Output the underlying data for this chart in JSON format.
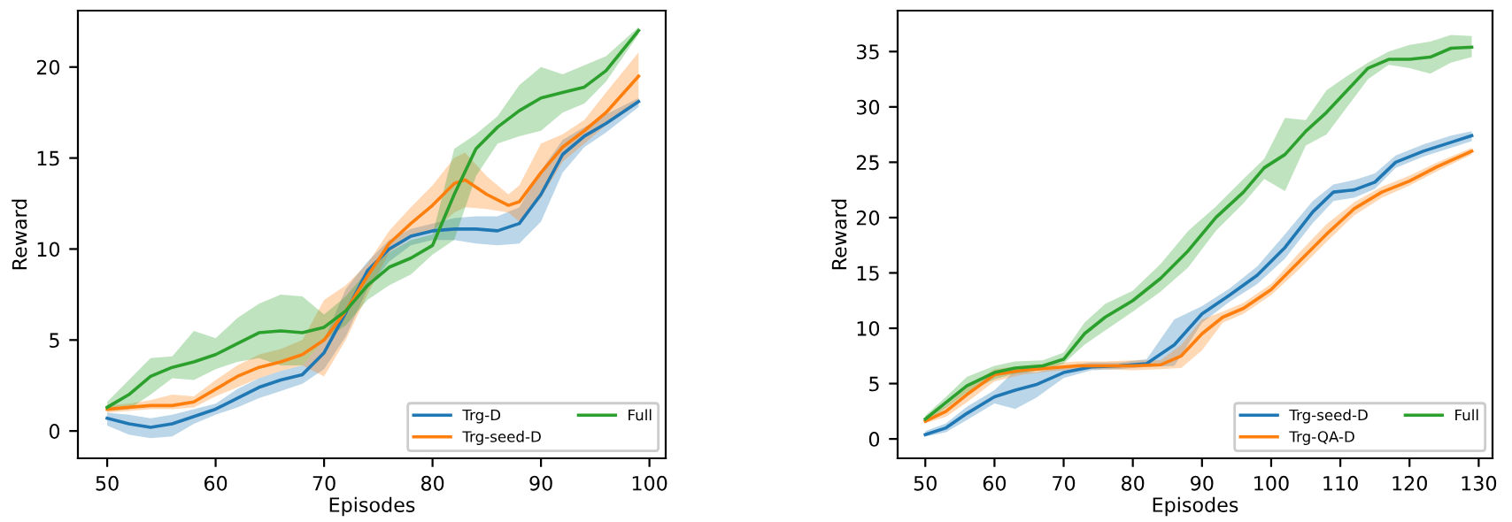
{
  "chart_data": [
    {
      "type": "line",
      "xlabel": "Episodes",
      "ylabel": "Reward",
      "xlim": [
        47.3,
        101.5
      ],
      "ylim": [
        -1.5,
        23.1
      ],
      "xticks": [
        50,
        60,
        70,
        80,
        90,
        100
      ],
      "yticks": [
        0,
        5,
        10,
        15,
        20
      ],
      "grid": false,
      "legend": "bottom right",
      "marker": "none",
      "line_style": "solid",
      "series": [
        {
          "name": "Trg-D",
          "color": "#1f77b4",
          "x": [
            50,
            52,
            54,
            56,
            58,
            60,
            62,
            64,
            66,
            68,
            70,
            72,
            74,
            76,
            78,
            80,
            82,
            84,
            86,
            88,
            90,
            92,
            94,
            96,
            99
          ],
          "values": [
            0.7,
            0.4,
            0.2,
            0.4,
            0.8,
            1.2,
            1.8,
            2.4,
            2.8,
            3.1,
            4.3,
            6.5,
            8.8,
            10.0,
            10.7,
            11.0,
            11.1,
            11.1,
            11.0,
            11.4,
            13.0,
            15.2,
            16.2,
            16.9,
            18.1
          ],
          "lower": [
            0.3,
            -0.2,
            -0.4,
            -0.3,
            0.4,
            0.9,
            1.3,
            1.8,
            2.2,
            2.6,
            3.4,
            5.2,
            7.8,
            9.3,
            10.2,
            10.5,
            10.5,
            10.3,
            10.2,
            10.3,
            11.5,
            14.2,
            15.6,
            16.4,
            17.8
          ],
          "upper": [
            1.0,
            0.9,
            0.7,
            0.9,
            1.2,
            1.5,
            2.3,
            2.9,
            3.3,
            3.6,
            5.0,
            7.8,
            9.3,
            10.5,
            11.1,
            11.4,
            11.7,
            11.8,
            11.8,
            12.3,
            14.3,
            16.0,
            16.7,
            17.4,
            18.3
          ]
        },
        {
          "name": "Trg-seed-D",
          "color": "#ff7f0e",
          "x": [
            50,
            52,
            54,
            56,
            58,
            60,
            62,
            64,
            66,
            68,
            70,
            72,
            74,
            76,
            78,
            80,
            82,
            83,
            85,
            87,
            88,
            90,
            92,
            94,
            96,
            99
          ],
          "values": [
            1.2,
            1.3,
            1.4,
            1.4,
            1.6,
            2.3,
            3.0,
            3.5,
            3.8,
            4.2,
            5.0,
            6.6,
            8.5,
            10.3,
            11.4,
            12.4,
            13.6,
            13.8,
            13.0,
            12.4,
            12.6,
            14.2,
            15.6,
            16.5,
            17.5,
            19.5
          ],
          "lower": [
            1.0,
            1.1,
            1.2,
            1.2,
            1.3,
            1.9,
            2.4,
            2.9,
            3.3,
            3.6,
            3.0,
            5.0,
            7.5,
            9.8,
            10.6,
            11.0,
            12.0,
            12.3,
            12.2,
            12.0,
            11.5,
            12.8,
            14.8,
            15.8,
            16.8,
            18.0
          ],
          "upper": [
            1.4,
            1.5,
            1.7,
            2.0,
            1.9,
            2.8,
            3.6,
            4.2,
            4.5,
            5.0,
            7.2,
            8.0,
            9.2,
            11.0,
            12.3,
            13.5,
            15.0,
            15.3,
            14.0,
            13.0,
            13.5,
            15.8,
            16.3,
            17.1,
            18.6,
            20.8
          ]
        },
        {
          "name": "Full",
          "color": "#2ca02c",
          "x": [
            50,
            52,
            54,
            56,
            58,
            60,
            62,
            64,
            66,
            68,
            70,
            72,
            74,
            76,
            78,
            80,
            82,
            84,
            86,
            88,
            90,
            92,
            94,
            96,
            99
          ],
          "values": [
            1.3,
            2.0,
            3.0,
            3.5,
            3.8,
            4.2,
            4.8,
            5.4,
            5.5,
            5.4,
            5.7,
            6.6,
            8.0,
            9.0,
            9.5,
            10.2,
            13.0,
            15.5,
            16.7,
            17.6,
            18.3,
            18.6,
            18.9,
            19.8,
            22.0
          ],
          "lower": [
            1.1,
            1.2,
            2.0,
            2.9,
            2.8,
            3.4,
            3.8,
            4.0,
            3.6,
            3.6,
            5.0,
            5.8,
            7.2,
            8.0,
            8.6,
            9.7,
            10.5,
            14.0,
            15.8,
            16.2,
            16.5,
            17.5,
            18.0,
            19.2,
            21.8
          ],
          "upper": [
            1.6,
            2.8,
            4.0,
            4.1,
            5.5,
            5.1,
            6.2,
            7.0,
            7.5,
            7.4,
            6.4,
            7.4,
            8.8,
            9.8,
            10.5,
            10.8,
            15.5,
            16.3,
            17.3,
            19.0,
            20.0,
            19.6,
            20.1,
            20.6,
            22.2
          ]
        }
      ]
    },
    {
      "type": "line",
      "xlabel": "Episodes",
      "ylabel": "Reward",
      "xlim": [
        46,
        132
      ],
      "ylim": [
        -1.75,
        38.7
      ],
      "xticks": [
        50,
        60,
        70,
        80,
        90,
        100,
        110,
        120,
        130
      ],
      "yticks": [
        0,
        5,
        10,
        15,
        20,
        25,
        30,
        35
      ],
      "grid": false,
      "legend": "bottom right",
      "marker": "none",
      "line_style": "solid",
      "series": [
        {
          "name": "Trg-seed-D",
          "color": "#1f77b4",
          "x": [
            50,
            53,
            56,
            60,
            63,
            66,
            70,
            74,
            78,
            82,
            86,
            90,
            94,
            98,
            102,
            106,
            109,
            112,
            115,
            118,
            122,
            126,
            129
          ],
          "values": [
            0.4,
            1.0,
            2.3,
            3.8,
            4.4,
            4.9,
            6.0,
            6.5,
            6.6,
            6.8,
            8.5,
            11.3,
            13.0,
            14.8,
            17.3,
            20.5,
            22.3,
            22.5,
            23.2,
            25.0,
            26.0,
            26.8,
            27.4
          ],
          "lower": [
            0.2,
            0.6,
            1.7,
            3.2,
            2.7,
            3.7,
            5.5,
            6.2,
            6.3,
            6.5,
            6.6,
            10.5,
            12.4,
            14.0,
            16.3,
            19.5,
            21.5,
            21.8,
            22.6,
            24.5,
            25.5,
            26.3,
            26.9
          ],
          "upper": [
            0.7,
            1.4,
            2.9,
            4.4,
            6.2,
            6.0,
            6.6,
            6.9,
            6.9,
            7.2,
            10.8,
            12.0,
            13.6,
            15.6,
            18.5,
            21.5,
            23.0,
            23.4,
            24.0,
            25.6,
            26.6,
            27.4,
            27.8
          ]
        },
        {
          "name": "Trg-QA-D",
          "color": "#ff7f0e",
          "x": [
            50,
            53,
            56,
            60,
            64,
            68,
            72,
            76,
            80,
            84,
            87,
            90,
            93,
            96,
            100,
            104,
            108,
            112,
            116,
            120,
            124,
            129
          ],
          "values": [
            1.6,
            2.5,
            4.0,
            5.8,
            6.2,
            6.4,
            6.6,
            6.6,
            6.6,
            6.7,
            7.5,
            9.5,
            11.0,
            11.8,
            13.5,
            16.0,
            18.5,
            20.8,
            22.3,
            23.3,
            24.6,
            26.0
          ],
          "lower": [
            1.4,
            2.0,
            3.3,
            5.2,
            5.8,
            6.1,
            6.3,
            6.3,
            6.2,
            6.3,
            6.4,
            8.0,
            10.5,
            11.3,
            13.0,
            15.3,
            17.8,
            20.2,
            21.8,
            22.9,
            24.2,
            25.7
          ],
          "upper": [
            1.9,
            3.0,
            4.6,
            6.3,
            6.6,
            6.8,
            7.0,
            7.0,
            7.1,
            7.1,
            8.5,
            10.8,
            11.5,
            12.3,
            14.0,
            16.8,
            19.4,
            21.4,
            22.8,
            23.8,
            25.0,
            26.3
          ]
        },
        {
          "name": "Full",
          "color": "#2ca02c",
          "x": [
            50,
            53,
            56,
            60,
            63,
            67,
            70,
            73,
            76,
            80,
            84,
            88,
            92,
            96,
            99,
            102,
            105,
            108,
            111,
            114,
            117,
            120,
            123,
            126,
            129
          ],
          "values": [
            1.8,
            3.3,
            4.8,
            6.0,
            6.4,
            6.6,
            7.2,
            9.5,
            11.0,
            12.5,
            14.5,
            17.0,
            20.0,
            22.3,
            24.5,
            25.7,
            27.8,
            29.5,
            31.5,
            33.5,
            34.3,
            34.3,
            34.5,
            35.3,
            35.4
          ],
          "lower": [
            1.5,
            2.8,
            4.2,
            5.4,
            5.9,
            6.2,
            6.8,
            8.5,
            9.8,
            11.5,
            13.3,
            15.5,
            18.8,
            21.3,
            23.5,
            22.4,
            26.5,
            27.5,
            30.0,
            32.5,
            33.8,
            33.5,
            33.0,
            34.0,
            34.5
          ],
          "upper": [
            2.1,
            3.8,
            5.6,
            6.6,
            7.0,
            7.1,
            7.8,
            10.5,
            12.2,
            13.4,
            15.8,
            18.8,
            21.0,
            23.5,
            25.3,
            29.0,
            28.8,
            31.5,
            32.8,
            34.0,
            35.0,
            35.6,
            35.9,
            36.5,
            36.4
          ]
        }
      ]
    }
  ]
}
